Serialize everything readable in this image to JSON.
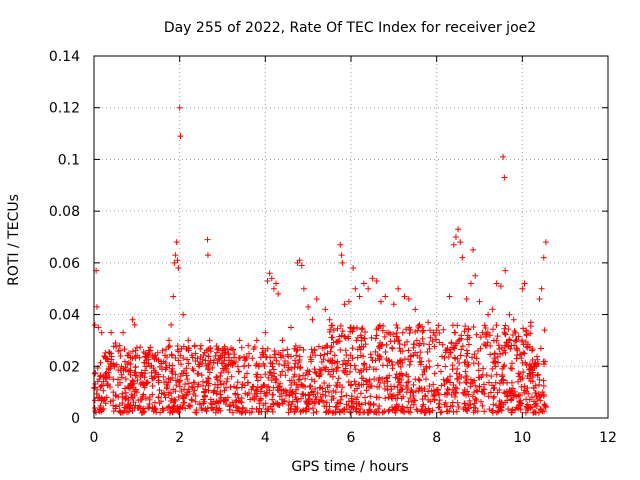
{
  "chart_data": {
    "type": "scatter",
    "title": "Day 255 of 2022, Rate Of TEC Index for receiver joe2",
    "xlabel": "GPS time / hours",
    "ylabel": "ROTI / TECUs",
    "xlim": [
      0,
      12
    ],
    "ylim": [
      0,
      0.14
    ],
    "x_ticks": [
      0,
      2,
      4,
      6,
      8,
      10,
      12
    ],
    "y_ticks": [
      0,
      0.02,
      0.04,
      0.06,
      0.08,
      0.1,
      0.12,
      0.14
    ],
    "x_tick_labels": [
      "0",
      "2",
      "4",
      "6",
      "8",
      "10",
      "12"
    ],
    "y_tick_labels": [
      "0",
      "0.02",
      "0.04",
      "0.06",
      "0.08",
      "0.1",
      "0.12",
      "0.14"
    ],
    "grid": true,
    "marker": "+",
    "color": "#ff0000",
    "series": [
      {
        "name": "ROTI",
        "points": [
          [
            0.02,
            0.036
          ],
          [
            0.05,
            0.057
          ],
          [
            0.07,
            0.043
          ],
          [
            0.1,
            0.035
          ],
          [
            0.18,
            0.033
          ],
          [
            0.25,
            0.024
          ],
          [
            0.4,
            0.033
          ],
          [
            0.5,
            0.029
          ],
          [
            0.6,
            0.028
          ],
          [
            0.68,
            0.033
          ],
          [
            0.9,
            0.038
          ],
          [
            0.95,
            0.036
          ],
          [
            1.2,
            0.025
          ],
          [
            1.4,
            0.024
          ],
          [
            1.6,
            0.026
          ],
          [
            1.75,
            0.03
          ],
          [
            1.8,
            0.036
          ],
          [
            1.85,
            0.047
          ],
          [
            1.88,
            0.06
          ],
          [
            1.9,
            0.063
          ],
          [
            1.93,
            0.068
          ],
          [
            1.95,
            0.061
          ],
          [
            1.97,
            0.058
          ],
          [
            2.0,
            0.12
          ],
          [
            2.02,
            0.109
          ],
          [
            2.08,
            0.04
          ],
          [
            2.2,
            0.03
          ],
          [
            2.35,
            0.028
          ],
          [
            2.5,
            0.028
          ],
          [
            2.65,
            0.069
          ],
          [
            2.66,
            0.063
          ],
          [
            2.7,
            0.03
          ],
          [
            3.0,
            0.026
          ],
          [
            3.2,
            0.027
          ],
          [
            3.4,
            0.03
          ],
          [
            3.6,
            0.028
          ],
          [
            3.8,
            0.03
          ],
          [
            4.0,
            0.033
          ],
          [
            4.05,
            0.053
          ],
          [
            4.1,
            0.056
          ],
          [
            4.15,
            0.054
          ],
          [
            4.2,
            0.05
          ],
          [
            4.25,
            0.052
          ],
          [
            4.3,
            0.048
          ],
          [
            4.4,
            0.03
          ],
          [
            4.6,
            0.035
          ],
          [
            4.75,
            0.06
          ],
          [
            4.8,
            0.061
          ],
          [
            4.85,
            0.059
          ],
          [
            4.9,
            0.05
          ],
          [
            5.0,
            0.043
          ],
          [
            5.1,
            0.038
          ],
          [
            5.2,
            0.046
          ],
          [
            5.4,
            0.042
          ],
          [
            5.5,
            0.038
          ],
          [
            5.6,
            0.034
          ],
          [
            5.75,
            0.067
          ],
          [
            5.78,
            0.063
          ],
          [
            5.8,
            0.06
          ],
          [
            5.85,
            0.044
          ],
          [
            5.95,
            0.045
          ],
          [
            6.05,
            0.058
          ],
          [
            6.1,
            0.05
          ],
          [
            6.2,
            0.047
          ],
          [
            6.3,
            0.052
          ],
          [
            6.4,
            0.05
          ],
          [
            6.5,
            0.054
          ],
          [
            6.6,
            0.053
          ],
          [
            6.7,
            0.045
          ],
          [
            6.8,
            0.047
          ],
          [
            7.0,
            0.044
          ],
          [
            7.1,
            0.05
          ],
          [
            7.25,
            0.047
          ],
          [
            7.35,
            0.046
          ],
          [
            7.5,
            0.042
          ],
          [
            7.6,
            0.036
          ],
          [
            7.8,
            0.037
          ],
          [
            8.0,
            0.034
          ],
          [
            8.3,
            0.047
          ],
          [
            8.4,
            0.067
          ],
          [
            8.45,
            0.07
          ],
          [
            8.5,
            0.073
          ],
          [
            8.55,
            0.068
          ],
          [
            8.6,
            0.062
          ],
          [
            8.7,
            0.046
          ],
          [
            8.8,
            0.052
          ],
          [
            8.85,
            0.065
          ],
          [
            8.9,
            0.055
          ],
          [
            9.0,
            0.045
          ],
          [
            9.2,
            0.04
          ],
          [
            9.3,
            0.042
          ],
          [
            9.4,
            0.052
          ],
          [
            9.5,
            0.051
          ],
          [
            9.55,
            0.101
          ],
          [
            9.58,
            0.093
          ],
          [
            9.6,
            0.057
          ],
          [
            9.7,
            0.04
          ],
          [
            9.8,
            0.038
          ],
          [
            10.0,
            0.05
          ],
          [
            10.05,
            0.052
          ],
          [
            10.2,
            0.037
          ],
          [
            10.4,
            0.046
          ],
          [
            10.45,
            0.05
          ],
          [
            10.5,
            0.062
          ],
          [
            10.55,
            0.068
          ],
          [
            10.52,
            0.034
          ],
          [
            0.15,
            0.012
          ],
          [
            0.3,
            0.008
          ],
          [
            0.45,
            0.015
          ],
          [
            0.6,
            0.005
          ],
          [
            0.8,
            0.018
          ],
          [
            1.0,
            0.01
          ],
          [
            1.3,
            0.007
          ],
          [
            1.5,
            0.016
          ],
          [
            1.7,
            0.012
          ],
          [
            2.1,
            0.008
          ],
          [
            2.3,
            0.019
          ],
          [
            2.6,
            0.011
          ],
          [
            2.9,
            0.006
          ],
          [
            3.1,
            0.014
          ],
          [
            3.3,
            0.009
          ],
          [
            3.5,
            0.02
          ],
          [
            3.7,
            0.012
          ],
          [
            3.9,
            0.007
          ],
          [
            4.2,
            0.016
          ],
          [
            4.5,
            0.01
          ],
          [
            4.7,
            0.021
          ],
          [
            5.0,
            0.009
          ],
          [
            5.3,
            0.017
          ],
          [
            5.7,
            0.006
          ],
          [
            6.0,
            0.013
          ],
          [
            6.3,
            0.019
          ],
          [
            6.6,
            0.008
          ],
          [
            6.9,
            0.022
          ],
          [
            7.2,
            0.011
          ],
          [
            7.5,
            0.015
          ],
          [
            7.8,
            0.007
          ],
          [
            8.1,
            0.018
          ],
          [
            8.4,
            0.01
          ],
          [
            8.7,
            0.024
          ],
          [
            9.0,
            0.012
          ],
          [
            9.3,
            0.019
          ],
          [
            9.6,
            0.006
          ],
          [
            9.9,
            0.014
          ],
          [
            10.2,
            0.02
          ],
          [
            10.5,
            0.009
          ]
        ]
      }
    ]
  }
}
